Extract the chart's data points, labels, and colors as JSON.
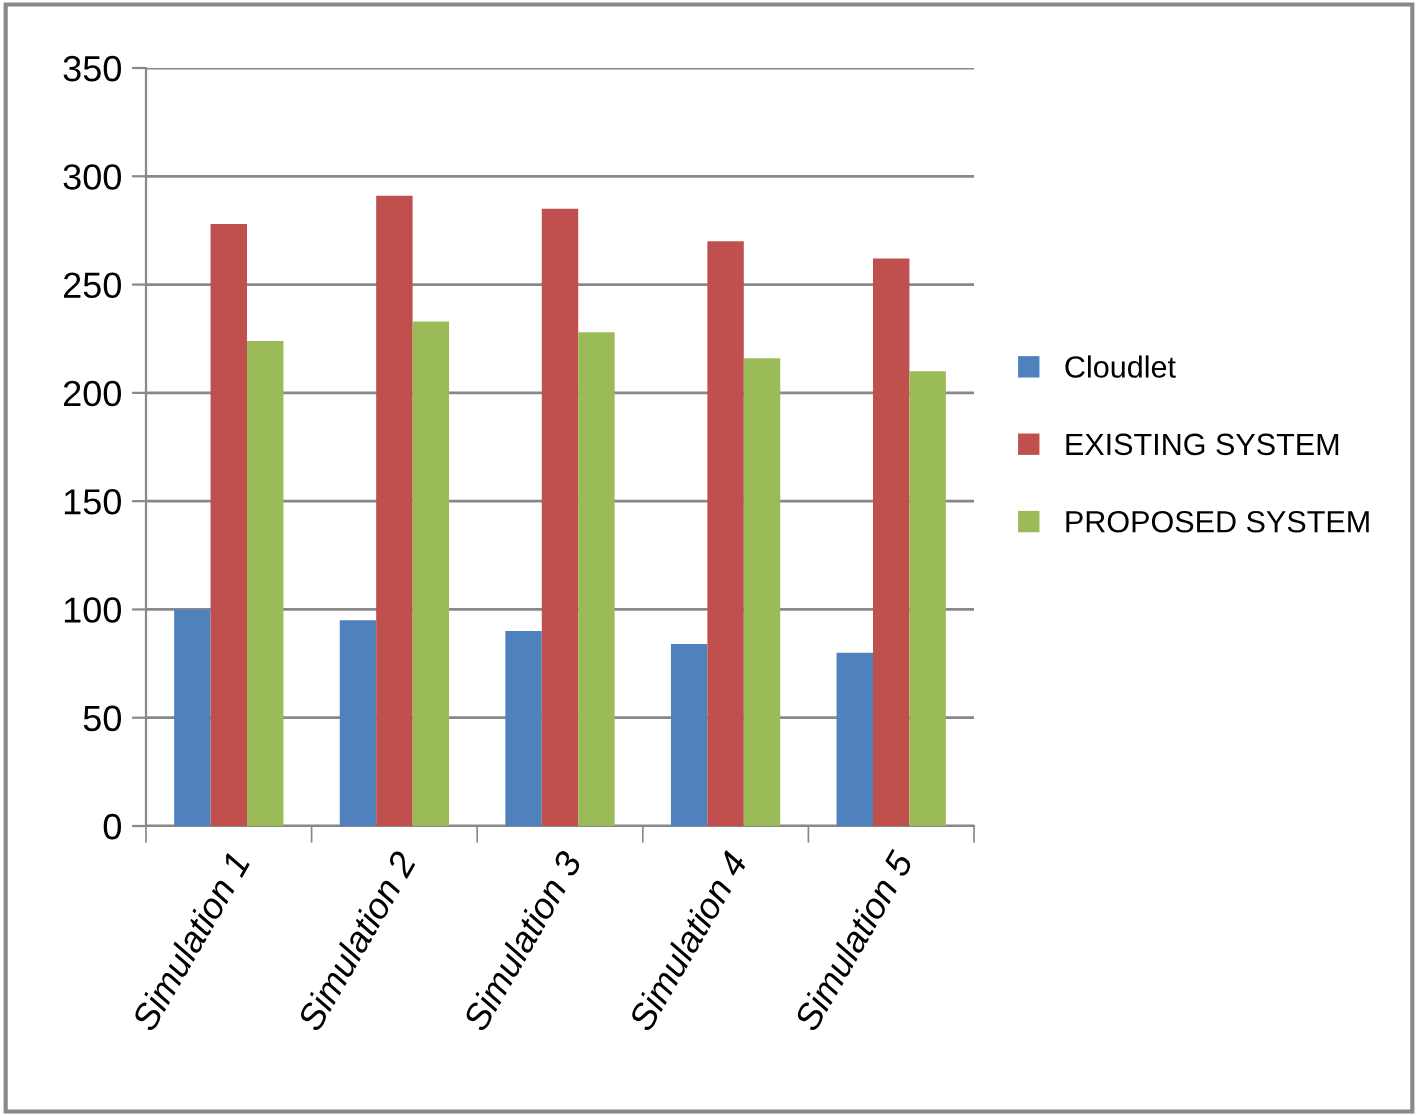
{
  "chart_data": {
    "type": "bar",
    "categories": [
      "Simulation 1",
      "Simulation 2",
      "Simulation 3",
      "Simulation 4",
      "Simulation 5"
    ],
    "series": [
      {
        "name": "Cloudlet",
        "color": "#4f81bd",
        "values": [
          100,
          95,
          90,
          84,
          80
        ]
      },
      {
        "name": "EXISTING SYSTEM",
        "color": "#c0504d",
        "values": [
          278,
          291,
          285,
          270,
          262
        ]
      },
      {
        "name": "PROPOSED SYSTEM",
        "color": "#9bbb59",
        "values": [
          224,
          233,
          228,
          216,
          210
        ]
      }
    ],
    "ylim": [
      0,
      350
    ],
    "yticks": [
      0,
      50,
      100,
      150,
      200,
      250,
      300,
      350
    ],
    "grid": "y",
    "legend": "right"
  }
}
